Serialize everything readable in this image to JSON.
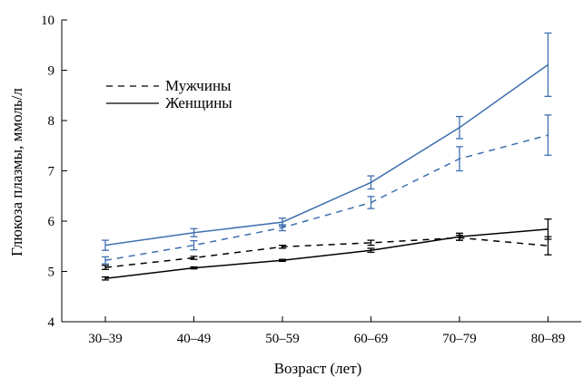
{
  "chart_data": {
    "type": "line",
    "xlabel": "Возраст (лет)",
    "ylabel": "Глюкоза плазмы, ммоль/л",
    "categories": [
      "30–39",
      "40–49",
      "50–59",
      "60–69",
      "70–79",
      "80–89"
    ],
    "ylim": [
      4,
      10
    ],
    "yticks": [
      "4",
      "5",
      "6",
      "7",
      "8",
      "9",
      "10"
    ],
    "legend": {
      "placement": "top-left",
      "items": [
        {
          "label": "Мужчины",
          "style": "dashed"
        },
        {
          "label": "Женщины",
          "style": "solid"
        }
      ]
    },
    "colors": {
      "upper": "#3e6fb0",
      "lower": "#000000"
    },
    "series": [
      {
        "style": "solid",
        "color_key": "upper",
        "values": [
          5.52,
          5.77,
          5.98,
          6.77,
          7.86,
          9.11
        ],
        "errors": [
          0.1,
          0.08,
          0.08,
          0.13,
          0.22,
          0.63
        ]
      },
      {
        "style": "dashed",
        "color_key": "upper",
        "values": [
          5.22,
          5.52,
          5.87,
          6.37,
          7.24,
          7.71
        ],
        "errors": [
          0.07,
          0.09,
          0.06,
          0.12,
          0.24,
          0.4
        ]
      },
      {
        "style": "dashed",
        "color_key": "lower",
        "values": [
          5.08,
          5.27,
          5.49,
          5.57,
          5.67,
          5.51
        ],
        "errors": [
          0.04,
          0.03,
          0.03,
          0.05,
          0.05,
          0.18
        ]
      },
      {
        "style": "solid",
        "color_key": "lower",
        "values": [
          4.86,
          5.07,
          5.22,
          5.42,
          5.69,
          5.84
        ],
        "errors": [
          0.03,
          0.02,
          0.02,
          0.04,
          0.07,
          0.2
        ]
      }
    ]
  }
}
